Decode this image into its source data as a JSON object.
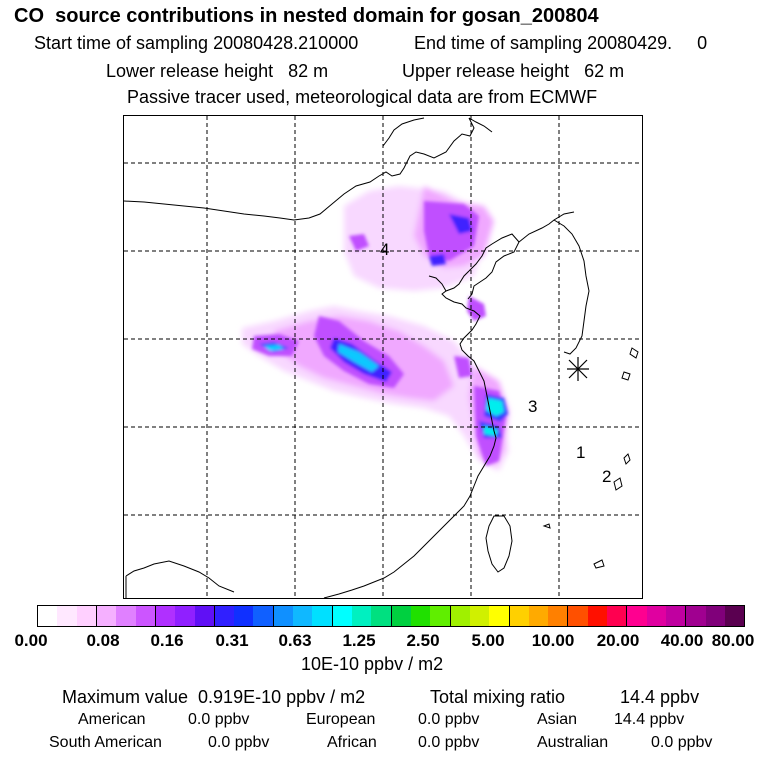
{
  "header": {
    "title": "CO  source contributions in nested domain for gosan_200804",
    "start_label": "Start time of sampling 20080428.210000",
    "end_label": "End time of sampling 20080429.     0",
    "lower_label": "Lower release height   82 m",
    "upper_label": "Upper release height   62 m",
    "info": "Passive tracer used, meteorological data are from ECMWF"
  },
  "map": {
    "region_labels": [
      "1",
      "2",
      "3",
      "4"
    ],
    "receptor_symbol": "star-marker"
  },
  "colorbar": {
    "colors": [
      "#ffffff",
      "#ffe8ff",
      "#ffd0ff",
      "#f5b0ff",
      "#e080ff",
      "#cc55ff",
      "#b030ff",
      "#9020ff",
      "#6010f5",
      "#3020ff",
      "#1030ff",
      "#1060ff",
      "#1090ff",
      "#10b8ff",
      "#00e0ff",
      "#00ffff",
      "#00f0c0",
      "#00e080",
      "#00d040",
      "#20e000",
      "#60ee00",
      "#a0f000",
      "#d0f000",
      "#ffff00",
      "#ffd000",
      "#ffaa00",
      "#ff8000",
      "#ff5000",
      "#ff1000",
      "#ff0050",
      "#ff0090",
      "#e000a0",
      "#c000a0",
      "#a00090",
      "#80007a",
      "#5a0050"
    ],
    "tick_labels": [
      "0.00",
      "0.08",
      "0.16",
      "0.31",
      "0.63",
      "1.25",
      "2.50",
      "5.00",
      "10.00",
      "20.00",
      "40.00",
      "80.00"
    ],
    "units": "10E-10 ppbv / m2"
  },
  "footer": {
    "max_label": "Maximum value  0.919E-10 ppbv / m2",
    "total_label": "Total mixing ratio",
    "total_value": "14.4 ppbv",
    "sources": [
      {
        "name": "American",
        "value": "0.0 ppbv"
      },
      {
        "name": "European",
        "value": "0.0 ppbv"
      },
      {
        "name": "Asian",
        "value": "14.4 ppbv"
      },
      {
        "name": "South American",
        "value": "0.0 ppbv"
      },
      {
        "name": "African",
        "value": "0.0 ppbv"
      },
      {
        "name": "Australian",
        "value": "0.0 ppbv"
      }
    ]
  }
}
